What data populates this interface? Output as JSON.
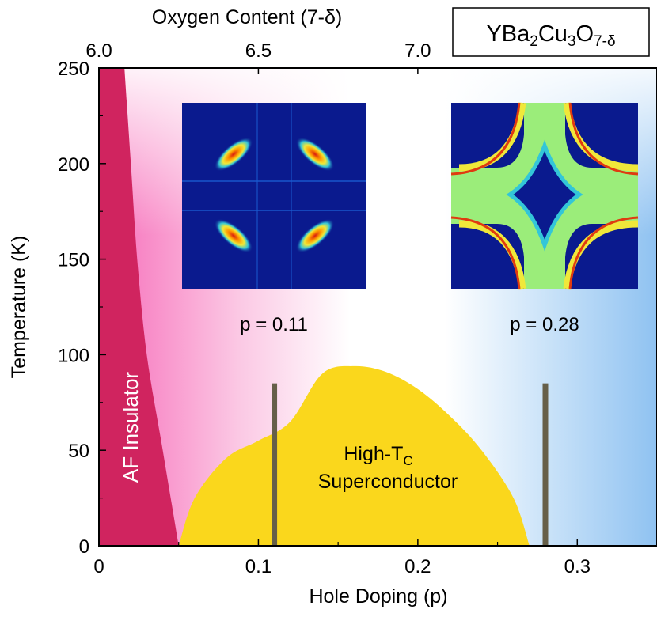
{
  "chart_data": {
    "type": "phase-diagram",
    "compound": {
      "base": "YBa",
      "sub1": "2",
      "mid1": "Cu",
      "sub2": "3",
      "mid2": "O",
      "sub3": "7-δ"
    },
    "xlabel": "Hole Doping  (p)",
    "ylabel": "Temperature  (K)",
    "top_axis_label": "Oxygen Content  (7-δ)",
    "xlim": [
      0,
      0.35
    ],
    "ylim": [
      0,
      250
    ],
    "x_ticks": [
      0,
      0.1,
      0.2,
      0.3
    ],
    "x_tick_labels": [
      "0",
      "0.1",
      "0.2",
      "0.3"
    ],
    "y_ticks": [
      0,
      50,
      100,
      150,
      200,
      250
    ],
    "y_tick_labels": [
      "0",
      "50",
      "100",
      "150",
      "200",
      "250"
    ],
    "top_ticks": [
      {
        "label": "6.0",
        "p": 0.0
      },
      {
        "label": "6.5",
        "p": 0.1
      },
      {
        "label": "7.0",
        "p": 0.2
      }
    ],
    "regions": {
      "af_insulator": {
        "label": "AF Insulator",
        "color": "#d0245f",
        "boundary": [
          [
            0.05,
            0
          ],
          [
            0.04,
            50
          ],
          [
            0.03,
            100
          ],
          [
            0.024,
            150
          ],
          [
            0.02,
            200
          ],
          [
            0.016,
            250
          ],
          [
            0.0,
            250
          ]
        ]
      },
      "superconductor": {
        "label_line1": "High-T",
        "label_sub": "C",
        "label_line2": "Superconductor",
        "color": "#fad71c",
        "dome": [
          [
            0.05,
            0
          ],
          [
            0.06,
            25
          ],
          [
            0.08,
            46
          ],
          [
            0.1,
            55
          ],
          [
            0.12,
            65
          ],
          [
            0.14,
            90
          ],
          [
            0.16,
            94
          ],
          [
            0.18,
            91
          ],
          [
            0.2,
            82
          ],
          [
            0.22,
            68
          ],
          [
            0.24,
            50
          ],
          [
            0.26,
            25
          ],
          [
            0.27,
            0
          ]
        ]
      }
    },
    "markers": [
      {
        "p": 0.11,
        "T_top": 85,
        "label": "p = 0.11",
        "color": "#665f49"
      },
      {
        "p": 0.28,
        "T_top": 85,
        "label": "p = 0.28",
        "color": "#665f49"
      }
    ],
    "insets": [
      {
        "name": "arpes-map-underdoped",
        "label": "p = 0.11"
      },
      {
        "name": "fermi-surface-overdoped",
        "label": "p = 0.28"
      }
    ],
    "background_gradient": [
      "#f96ab7",
      "#ffffff",
      "#92c4f2"
    ]
  }
}
